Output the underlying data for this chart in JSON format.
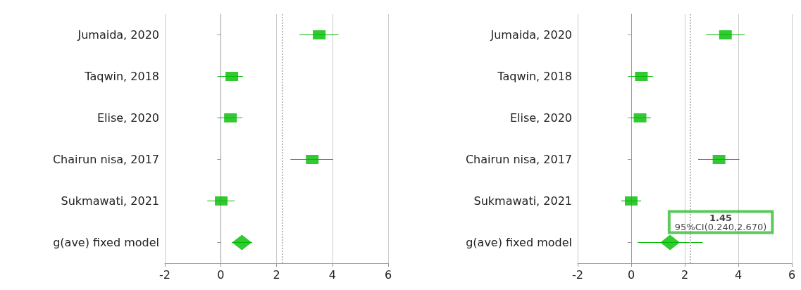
{
  "chart_data": [
    {
      "type": "scatter",
      "orientation": "horizontal",
      "categories": [
        "Jumaida, 2020",
        "Taqwin, 2018",
        "Elise, 2020",
        "Chairun nisa, 2017",
        "Sukmawati, 2021",
        "g(ave) fixed model"
      ],
      "xlim": [
        -2,
        6
      ],
      "xticks": [
        -2,
        0,
        2,
        4,
        6
      ],
      "grid": "x",
      "marker": "square",
      "series": [
        {
          "color": "#00bb00",
          "values": [
            3.53,
            0.4,
            0.35,
            3.28,
            0.02,
            null
          ],
          "errors": [
            [
              2.82,
              4.22
            ],
            [
              -0.08,
              0.8
            ],
            [
              -0.08,
              0.78
            ],
            [
              2.5,
              4.03
            ],
            [
              -0.48,
              0.5
            ],
            null
          ]
        },
        {
          "type": "scatter",
          "marker": "diamond",
          "color": "#00bb00",
          "values": [
            null,
            null,
            null,
            null,
            null,
            0.76
          ],
          "errors": [
            null,
            null,
            null,
            null,
            null,
            [
              0.4,
              1.13
            ]
          ]
        }
      ],
      "ref_lines": [
        {
          "axis": "x",
          "value": 2.2,
          "line_style": "dotted",
          "color": "#bbbbbb"
        }
      ]
    },
    {
      "type": "scatter",
      "orientation": "horizontal",
      "categories": [
        "Jumaida, 2020",
        "Taqwin, 2018",
        "Elise, 2020",
        "Chairun nisa, 2017",
        "Sukmawati, 2021",
        "g(ave) fixed model"
      ],
      "xlim": [
        -2,
        6
      ],
      "xticks": [
        -2,
        0,
        2,
        4,
        6
      ],
      "grid": "x",
      "marker": "square",
      "series": [
        {
          "color": "#00bb00",
          "values": [
            3.52,
            0.38,
            0.33,
            3.28,
            0.0,
            null
          ],
          "errors": [
            [
              2.8,
              4.24
            ],
            [
              -0.09,
              0.81
            ],
            [
              -0.03,
              0.73
            ],
            [
              2.5,
              4.04
            ],
            [
              -0.37,
              0.37
            ],
            null
          ]
        },
        {
          "type": "scatter",
          "marker": "diamond",
          "color": "#00bb00",
          "values": [
            null,
            null,
            null,
            null,
            null,
            1.45
          ],
          "errors": [
            null,
            null,
            null,
            null,
            null,
            [
              0.24,
              2.67
            ]
          ]
        }
      ],
      "ref_lines": [
        {
          "axis": "x",
          "value": 2.2,
          "line_style": "dotted",
          "color": "#bbbbbb"
        }
      ],
      "annotations": [
        {
          "text": "1.45\n95%CI(0.240,2.670)",
          "x": 1.45,
          "y": "g(ave) fixed model"
        }
      ]
    }
  ]
}
